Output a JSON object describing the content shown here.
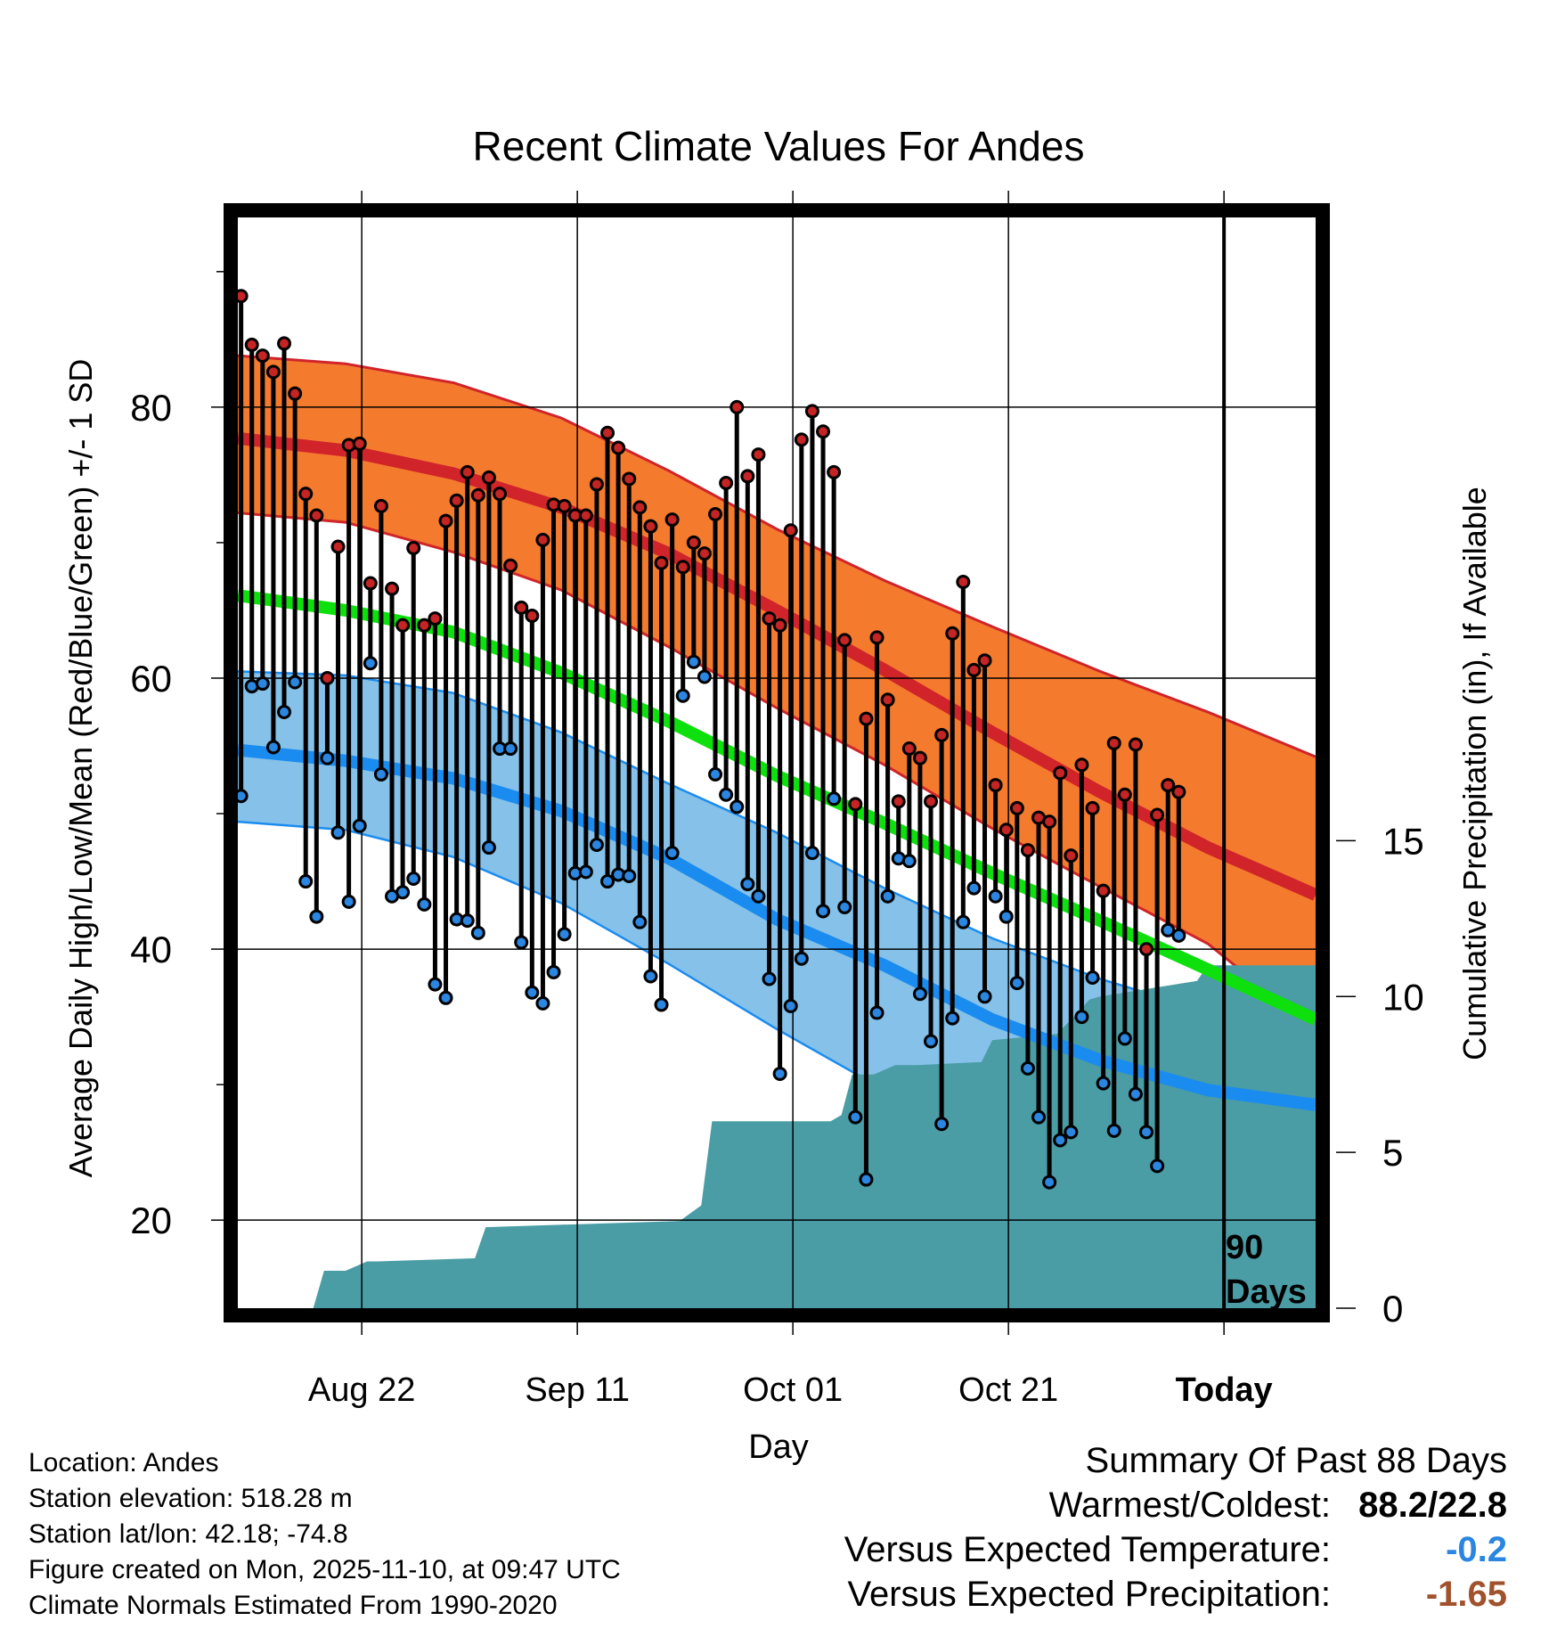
{
  "chart_data": {
    "type": "line",
    "title": "Recent Climate Values For Andes",
    "xlabel": "Day",
    "ylabel": "Average Daily High/Low/Mean (Red/Blue/Green) +/- 1 SD",
    "y2label": "Cumulative Precipitation (in), If Available",
    "xlim": [
      0,
      100
    ],
    "ylim": [
      13.5,
      94
    ],
    "y2lim": [
      0,
      35
    ],
    "x_ticks": [
      {
        "x": 11.5,
        "label": "Aug 22",
        "bold": false
      },
      {
        "x": 31.5,
        "label": "Sep 11",
        "bold": false
      },
      {
        "x": 51.5,
        "label": "Oct 01",
        "bold": false
      },
      {
        "x": 71.5,
        "label": "Oct 21",
        "bold": false
      },
      {
        "x": 91.5,
        "label": "Today",
        "bold": true
      }
    ],
    "y_ticks": [
      20,
      40,
      60,
      80
    ],
    "y_minor_ticks": [
      30,
      50,
      70,
      90
    ],
    "y2_ticks": [
      0,
      5,
      10,
      15
    ],
    "today_x": 91.5,
    "today_label_line1": "90",
    "today_label_line2": "Days",
    "normal_high": {
      "x": [
        0,
        10,
        20,
        30,
        40,
        50,
        60,
        70,
        80,
        90,
        100
      ],
      "mean": [
        77.7,
        76.8,
        75.1,
        72.6,
        69.2,
        65.0,
        60.6,
        56.0,
        51.6,
        47.5,
        44.0
      ],
      "upper": [
        83.8,
        83.2,
        81.8,
        79.2,
        75.3,
        71.0,
        67.2,
        63.8,
        60.5,
        57.5,
        54.2
      ],
      "lower": [
        72.2,
        71.5,
        69.3,
        66.5,
        62.3,
        57.8,
        53.6,
        48.9,
        44.6,
        40.4,
        34.0
      ]
    },
    "normal_low": {
      "x": [
        0,
        10,
        20,
        30,
        40,
        50,
        60,
        70,
        80,
        90,
        100
      ],
      "mean": [
        54.7,
        53.9,
        52.6,
        50.2,
        46.7,
        42.2,
        38.8,
        34.8,
        31.8,
        29.6,
        28.5
      ],
      "upper": [
        60.5,
        60.2,
        58.9,
        56.0,
        52.2,
        48.6,
        44.5,
        40.8,
        37.8,
        35.4,
        33.8
      ],
      "lower": [
        49.4,
        48.8,
        46.8,
        43.4,
        38.9,
        34.1,
        29.6,
        25.2,
        21.8,
        19.2,
        17.5
      ]
    },
    "normal_mean": {
      "x": [
        0,
        10,
        20,
        30,
        40,
        50,
        60,
        70,
        80,
        90,
        100
      ],
      "values": [
        66.1,
        65.0,
        63.4,
        60.4,
        56.8,
        52.8,
        49.3,
        45.6,
        42.1,
        38.5,
        34.8
      ]
    },
    "cumulative_precip": {
      "x": [
        0,
        7,
        8,
        10,
        12,
        13,
        22,
        23,
        41,
        43,
        44,
        55,
        56,
        57,
        59,
        61,
        62,
        63,
        69,
        70,
        76,
        78,
        79,
        80,
        89,
        90,
        91,
        100
      ],
      "values": [
        0,
        0,
        1.2,
        1.2,
        1.5,
        1.5,
        1.6,
        2.6,
        2.8,
        3.3,
        6.0,
        6.0,
        6.2,
        7.5,
        7.5,
        7.8,
        7.8,
        7.8,
        7.9,
        8.6,
        8.8,
        9.5,
        9.9,
        10.0,
        10.5,
        11.0,
        11.0,
        11.0
      ]
    },
    "daily_high": [
      88.2,
      84.6,
      83.8,
      82.6,
      84.7,
      81.0,
      73.6,
      72.0,
      60.0,
      69.7,
      77.2,
      77.3,
      67.0,
      72.7,
      66.6,
      63.9,
      69.6,
      63.9,
      64.4,
      71.6,
      73.1,
      75.2,
      73.5,
      74.8,
      73.6,
      68.3,
      65.2,
      64.6,
      70.2,
      72.8,
      72.7,
      72.0,
      72.0,
      74.3,
      78.1,
      77.0,
      74.7,
      72.6,
      71.2,
      68.5,
      71.7,
      68.2,
      70.0,
      69.2,
      72.1,
      74.4,
      80.0,
      74.9,
      76.5,
      64.4,
      63.9,
      70.9,
      77.6,
      79.7,
      78.2,
      75.2,
      62.8,
      50.7,
      57.0,
      63.0,
      58.4,
      50.9,
      54.8,
      54.1,
      50.9,
      55.8,
      63.3,
      67.1,
      60.6,
      61.3,
      52.1,
      48.8,
      50.4,
      47.3,
      49.7,
      49.4,
      53.0,
      46.9,
      53.6,
      50.4,
      44.3,
      55.2,
      51.4,
      55.1,
      40.0,
      49.9,
      52.1,
      51.6
    ],
    "daily_low": [
      51.3,
      59.4,
      59.6,
      54.9,
      57.5,
      59.7,
      45.0,
      42.4,
      54.1,
      48.6,
      43.5,
      49.1,
      61.1,
      52.9,
      43.9,
      44.2,
      45.2,
      43.3,
      37.4,
      36.4,
      42.2,
      42.1,
      41.2,
      47.5,
      54.8,
      54.8,
      40.5,
      36.8,
      36.0,
      38.3,
      41.1,
      45.6,
      45.7,
      47.7,
      45.0,
      45.5,
      45.4,
      42.0,
      38.0,
      35.9,
      47.1,
      58.7,
      61.2,
      60.1,
      52.9,
      51.4,
      50.5,
      44.8,
      43.9,
      37.8,
      30.8,
      35.8,
      39.3,
      47.1,
      42.8,
      51.1,
      43.1,
      27.6,
      23.0,
      35.3,
      43.9,
      46.7,
      46.5,
      36.7,
      33.2,
      27.1,
      34.9,
      42.0,
      44.5,
      36.5,
      43.9,
      42.4,
      37.5,
      31.2,
      27.6,
      22.8,
      25.9,
      26.5,
      35.0,
      37.9,
      30.1,
      26.6,
      33.4,
      29.3,
      26.5,
      24.0,
      41.4,
      41.0
    ],
    "start_x": 0.3,
    "step_x": 1.0
  },
  "colors": {
    "high_band": "#f47a2e",
    "high_line": "#d0242a",
    "low_band": "#85c1e8",
    "low_line": "#1a8cf0",
    "mean_line": "#0ee00e",
    "precip": "#4a9ca5",
    "high_dot": "#c42424",
    "low_dot": "#2a86e0",
    "warm_value": "#000000",
    "temp_anomaly": "#2a86e0",
    "precip_anomaly": "#a0522d"
  },
  "info": {
    "location": "Location: Andes",
    "elevation": "Station elevation: 518.28 m",
    "latlon": "Station lat/lon: 42.18; -74.8",
    "created": "Figure created on Mon, 2025-11-10, at 09:47 UTC",
    "normals": "Climate Normals Estimated From 1990-2020"
  },
  "summary": {
    "title": "Summary Of Past 88 Days",
    "warm_cold_label": "Warmest/Coldest:",
    "warm_cold_value": "88.2/22.8",
    "temp_label": "Versus Expected Temperature:",
    "temp_value": "-0.2",
    "precip_label": "Versus Expected Precipitation:",
    "precip_value": "-1.65"
  }
}
